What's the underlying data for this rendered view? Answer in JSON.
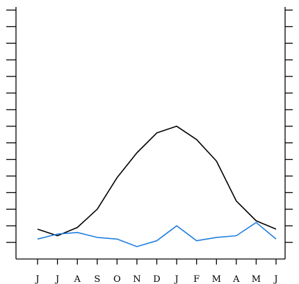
{
  "chart_data": {
    "type": "line",
    "title": "",
    "xlabel": "",
    "ylabel": "",
    "categories": [
      "J",
      "J",
      "A",
      "S",
      "O",
      "N",
      "D",
      "J",
      "F",
      "M",
      "A",
      "M",
      "J"
    ],
    "ylim": [
      0,
      15
    ],
    "y_tick_count": 15,
    "y_ticks_labeled": false,
    "grid": false,
    "legend": "none",
    "series": [
      {
        "color": "#000000",
        "values": [
          1.8,
          1.4,
          1.9,
          3.0,
          4.9,
          6.4,
          7.6,
          8.0,
          7.2,
          5.9,
          3.5,
          2.3,
          1.8
        ]
      },
      {
        "color": "#1f7fe0",
        "values": [
          1.2,
          1.5,
          1.6,
          1.3,
          1.2,
          0.75,
          1.1,
          2.0,
          1.1,
          1.3,
          1.4,
          2.2,
          1.2
        ]
      }
    ]
  }
}
